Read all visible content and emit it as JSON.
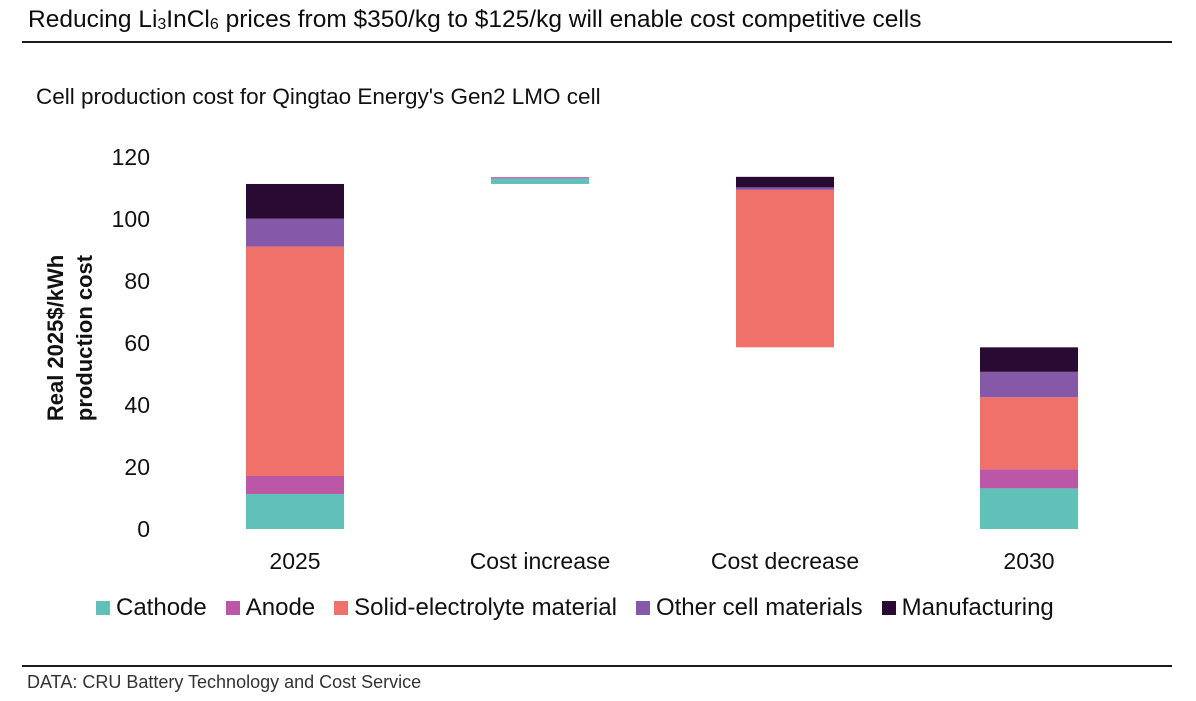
{
  "headline": {
    "prefix": "Reducing Li",
    "sub1": "3",
    "mid": "InCl",
    "sub2": "6",
    "suffix": " prices from $350/kg to $125/kg will enable cost competitive cells"
  },
  "footer": "DATA: CRU Battery Technology and Cost Service",
  "chart_data": {
    "type": "bar",
    "subtype": "stacked-waterfall",
    "title": "Cell production cost for Qingtao Energy's Gen2 LMO cell",
    "xlabel": "",
    "ylabel": [
      "Real 2025$/kWh",
      "production cost"
    ],
    "ylim": [
      0,
      120
    ],
    "yticks": [
      0,
      20,
      40,
      60,
      80,
      100,
      120
    ],
    "grid": false,
    "legend_position": "bottom",
    "categories": [
      "2025",
      "Cost increase",
      "Cost decrease",
      "2030"
    ],
    "bar_base": [
      0,
      111.3,
      58.6,
      0
    ],
    "series": [
      {
        "name": "Cathode",
        "color": "#5fc1b8",
        "values": [
          11.3,
          1.8,
          0,
          13.1
        ]
      },
      {
        "name": "Anode",
        "color": "#bc57a8",
        "values": [
          5.8,
          0.4,
          0,
          6.2
        ]
      },
      {
        "name": "Solid-electrolyte material",
        "color": "#f0716a",
        "values": [
          74.0,
          0,
          50.8,
          23.2
        ]
      },
      {
        "name": "Other cell materials",
        "color": "#8559a7",
        "values": [
          9.0,
          0,
          0.8,
          8.2
        ]
      },
      {
        "name": "Manufacturing",
        "color": "#280a33",
        "values": [
          11.2,
          0,
          3.4,
          7.9
        ]
      }
    ]
  }
}
